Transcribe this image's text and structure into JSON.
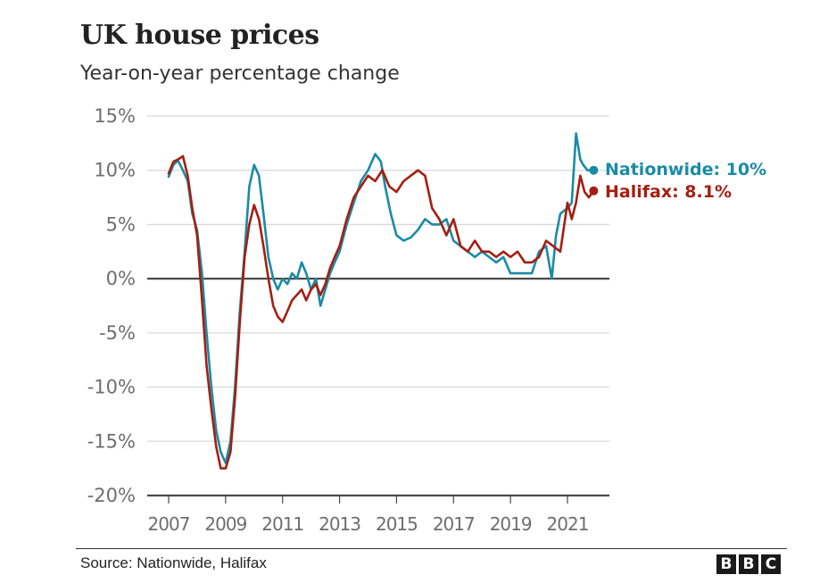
{
  "chart_data": {
    "type": "line",
    "title": "UK house prices",
    "subtitle": "Year-on-year percentage change",
    "xlabel": "",
    "ylabel": "",
    "xlim": [
      2006.8,
      2022.6
    ],
    "ylim": [
      -20,
      15
    ],
    "grid": true,
    "y_ticks": [
      15,
      10,
      5,
      0,
      -5,
      -10,
      -15,
      -20
    ],
    "y_tick_labels": [
      "15%",
      "10%",
      "5%",
      "0%",
      "-5%",
      "-10%",
      "-15%",
      "-20%"
    ],
    "x_ticks": [
      2007,
      2009,
      2011,
      2013,
      2015,
      2017,
      2019,
      2021
    ],
    "x_tick_labels": [
      "2007",
      "2009",
      "2011",
      "2013",
      "2015",
      "2017",
      "2019",
      "2021"
    ],
    "legend": "end-of-line labels, right",
    "series": [
      {
        "name": "Nationwide",
        "end_label": "Nationwide: 10%",
        "color": "#1a8ba6",
        "x": [
          2007.0,
          2007.17,
          2007.33,
          2007.5,
          2007.67,
          2007.83,
          2008.0,
          2008.17,
          2008.33,
          2008.5,
          2008.67,
          2008.83,
          2009.0,
          2009.17,
          2009.33,
          2009.5,
          2009.67,
          2009.83,
          2010.0,
          2010.17,
          2010.33,
          2010.5,
          2010.67,
          2010.83,
          2011.0,
          2011.17,
          2011.33,
          2011.5,
          2011.67,
          2011.83,
          2012.0,
          2012.17,
          2012.33,
          2012.5,
          2012.67,
          2012.83,
          2013.0,
          2013.25,
          2013.5,
          2013.75,
          2014.0,
          2014.25,
          2014.45,
          2014.6,
          2014.8,
          2015.0,
          2015.25,
          2015.5,
          2015.75,
          2016.0,
          2016.25,
          2016.5,
          2016.75,
          2017.0,
          2017.25,
          2017.5,
          2017.75,
          2018.0,
          2018.25,
          2018.5,
          2018.75,
          2019.0,
          2019.25,
          2019.5,
          2019.75,
          2020.0,
          2020.25,
          2020.45,
          2020.6,
          2020.75,
          2021.0,
          2021.15,
          2021.3,
          2021.45,
          2021.55,
          2021.7,
          2021.85,
          2021.92
        ],
        "y": [
          9.4,
          10.5,
          10.9,
          10.0,
          9.0,
          6.0,
          4.5,
          0.5,
          -5.0,
          -10.0,
          -14.0,
          -16.0,
          -17.0,
          -15.0,
          -10.0,
          -3.0,
          2.5,
          8.5,
          10.5,
          9.5,
          6.0,
          2.0,
          0.0,
          -1.0,
          0.0,
          -0.5,
          0.5,
          0.0,
          1.5,
          0.5,
          -1.0,
          0.0,
          -2.5,
          -1.0,
          0.5,
          1.5,
          2.5,
          5.0,
          7.0,
          9.0,
          10.0,
          11.5,
          10.8,
          8.5,
          6.0,
          4.0,
          3.5,
          3.8,
          4.5,
          5.5,
          5.0,
          5.0,
          5.5,
          3.5,
          3.0,
          2.5,
          2.0,
          2.5,
          2.0,
          1.5,
          2.0,
          0.5,
          0.5,
          0.5,
          0.5,
          2.5,
          3.0,
          0.0,
          4.0,
          6.0,
          6.5,
          7.0,
          13.4,
          11.0,
          10.5,
          10.0,
          10.0,
          10.0
        ]
      },
      {
        "name": "Halifax",
        "end_label": "Halifax: 8.1%",
        "color": "#a51e12",
        "x": [
          2007.0,
          2007.17,
          2007.33,
          2007.5,
          2007.67,
          2007.83,
          2008.0,
          2008.17,
          2008.33,
          2008.5,
          2008.67,
          2008.83,
          2009.0,
          2009.17,
          2009.33,
          2009.5,
          2009.67,
          2009.83,
          2010.0,
          2010.17,
          2010.33,
          2010.5,
          2010.67,
          2010.83,
          2011.0,
          2011.17,
          2011.33,
          2011.5,
          2011.67,
          2011.83,
          2012.0,
          2012.17,
          2012.33,
          2012.5,
          2012.67,
          2012.83,
          2013.0,
          2013.25,
          2013.5,
          2013.75,
          2014.0,
          2014.25,
          2014.5,
          2014.75,
          2015.0,
          2015.25,
          2015.5,
          2015.75,
          2016.0,
          2016.25,
          2016.5,
          2016.75,
          2017.0,
          2017.25,
          2017.5,
          2017.75,
          2018.0,
          2018.25,
          2018.5,
          2018.75,
          2019.0,
          2019.25,
          2019.5,
          2019.75,
          2020.0,
          2020.25,
          2020.5,
          2020.75,
          2021.0,
          2021.15,
          2021.3,
          2021.45,
          2021.6,
          2021.75,
          2021.92
        ],
        "y": [
          9.7,
          10.8,
          11.0,
          11.3,
          9.5,
          6.5,
          4.0,
          -2.0,
          -8.0,
          -12.0,
          -15.5,
          -17.5,
          -17.5,
          -16.0,
          -11.0,
          -4.0,
          2.0,
          5.0,
          6.8,
          5.5,
          3.0,
          0.0,
          -2.5,
          -3.5,
          -4.0,
          -3.0,
          -2.0,
          -1.5,
          -1.0,
          -2.0,
          -1.0,
          -0.5,
          -1.5,
          -0.5,
          1.0,
          2.0,
          3.0,
          5.5,
          7.5,
          8.5,
          9.5,
          9.0,
          10.0,
          8.5,
          8.0,
          9.0,
          9.5,
          10.0,
          9.5,
          6.5,
          5.5,
          4.0,
          5.5,
          3.0,
          2.5,
          3.5,
          2.5,
          2.5,
          2.0,
          2.5,
          2.0,
          2.5,
          1.5,
          1.5,
          2.0,
          3.5,
          3.0,
          2.5,
          7.0,
          5.5,
          7.0,
          9.5,
          8.0,
          7.5,
          8.1
        ]
      }
    ]
  },
  "footer": {
    "source": "Source: Nationwide, Halifax",
    "logo_letters": [
      "B",
      "B",
      "C"
    ]
  },
  "colors": {
    "nationwide": "#1a8ba6",
    "halifax": "#a51e12",
    "grid": "#d9d9d9",
    "zero_line": "#4a4a4a"
  }
}
